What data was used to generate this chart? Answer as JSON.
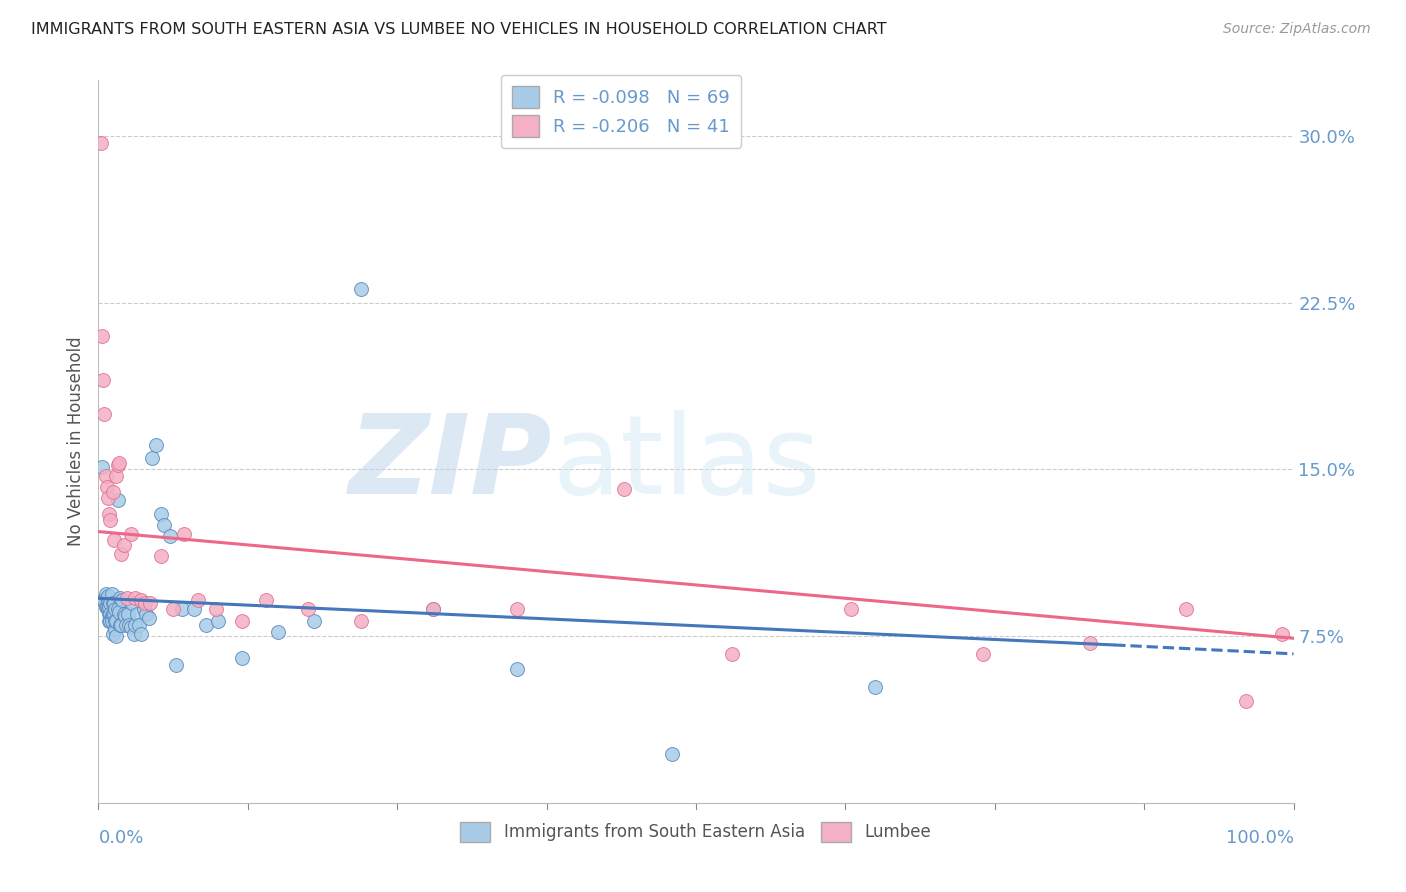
{
  "title": "IMMIGRANTS FROM SOUTH EASTERN ASIA VS LUMBEE NO VEHICLES IN HOUSEHOLD CORRELATION CHART",
  "source": "Source: ZipAtlas.com",
  "ylabel": "No Vehicles in Household",
  "ytick_values": [
    0.075,
    0.15,
    0.225,
    0.3
  ],
  "xlim": [
    0.0,
    1.0
  ],
  "ylim": [
    0.0,
    0.325
  ],
  "watermark_text": "ZIPatlas",
  "series1_label": "Immigrants from South Eastern Asia",
  "series2_label": "Lumbee",
  "series1_color": "#a8cce8",
  "series2_color": "#f4b0c4",
  "series1_edge": "#5588bb",
  "series2_edge": "#dd7090",
  "series1_line": "#4477bb",
  "series2_line": "#ee6688",
  "r1": -0.098,
  "n1": 69,
  "r2": -0.206,
  "n2": 41,
  "title_color": "#222222",
  "axis_color": "#6699cc",
  "background_color": "#ffffff",
  "grid_color": "#cccccc",
  "legend_r_color": "#4477bb",
  "series1_x": [
    0.003,
    0.004,
    0.005,
    0.006,
    0.006,
    0.007,
    0.007,
    0.008,
    0.008,
    0.008,
    0.009,
    0.009,
    0.009,
    0.01,
    0.01,
    0.01,
    0.011,
    0.011,
    0.011,
    0.012,
    0.012,
    0.012,
    0.013,
    0.013,
    0.014,
    0.014,
    0.014,
    0.015,
    0.015,
    0.016,
    0.016,
    0.017,
    0.018,
    0.018,
    0.019,
    0.02,
    0.021,
    0.022,
    0.023,
    0.025,
    0.026,
    0.027,
    0.028,
    0.03,
    0.031,
    0.032,
    0.034,
    0.036,
    0.038,
    0.04,
    0.042,
    0.045,
    0.048,
    0.052,
    0.055,
    0.06,
    0.065,
    0.07,
    0.08,
    0.09,
    0.1,
    0.12,
    0.15,
    0.18,
    0.22,
    0.28,
    0.35,
    0.48,
    0.65
  ],
  "series1_y": [
    0.151,
    0.091,
    0.091,
    0.088,
    0.094,
    0.088,
    0.092,
    0.087,
    0.091,
    0.093,
    0.085,
    0.088,
    0.082,
    0.09,
    0.085,
    0.082,
    0.084,
    0.082,
    0.094,
    0.085,
    0.076,
    0.09,
    0.09,
    0.085,
    0.078,
    0.087,
    0.082,
    0.082,
    0.075,
    0.136,
    0.087,
    0.086,
    0.092,
    0.08,
    0.08,
    0.091,
    0.085,
    0.084,
    0.08,
    0.085,
    0.08,
    0.079,
    0.09,
    0.076,
    0.08,
    0.085,
    0.08,
    0.076,
    0.087,
    0.085,
    0.083,
    0.155,
    0.161,
    0.13,
    0.125,
    0.12,
    0.062,
    0.087,
    0.087,
    0.08,
    0.082,
    0.065,
    0.077,
    0.082,
    0.231,
    0.087,
    0.06,
    0.022,
    0.052
  ],
  "series2_x": [
    0.002,
    0.003,
    0.004,
    0.005,
    0.006,
    0.007,
    0.008,
    0.009,
    0.01,
    0.012,
    0.013,
    0.015,
    0.016,
    0.017,
    0.019,
    0.021,
    0.024,
    0.027,
    0.031,
    0.036,
    0.039,
    0.043,
    0.052,
    0.062,
    0.072,
    0.083,
    0.098,
    0.12,
    0.14,
    0.175,
    0.22,
    0.28,
    0.35,
    0.44,
    0.53,
    0.63,
    0.74,
    0.83,
    0.91,
    0.96,
    0.99
  ],
  "series2_y": [
    0.297,
    0.21,
    0.19,
    0.175,
    0.147,
    0.142,
    0.137,
    0.13,
    0.127,
    0.14,
    0.118,
    0.147,
    0.152,
    0.153,
    0.112,
    0.116,
    0.092,
    0.121,
    0.092,
    0.091,
    0.09,
    0.09,
    0.111,
    0.087,
    0.121,
    0.091,
    0.087,
    0.082,
    0.091,
    0.087,
    0.082,
    0.087,
    0.087,
    0.141,
    0.067,
    0.087,
    0.067,
    0.072,
    0.087,
    0.046,
    0.076
  ],
  "trend1_x0": 0.0,
  "trend1_y0": 0.092,
  "trend1_x1": 0.85,
  "trend1_y1": 0.071,
  "trend1_ext_x1": 1.0,
  "trend1_ext_y1": 0.067,
  "trend2_x0": 0.0,
  "trend2_y0": 0.122,
  "trend2_x1": 1.0,
  "trend2_y1": 0.074
}
